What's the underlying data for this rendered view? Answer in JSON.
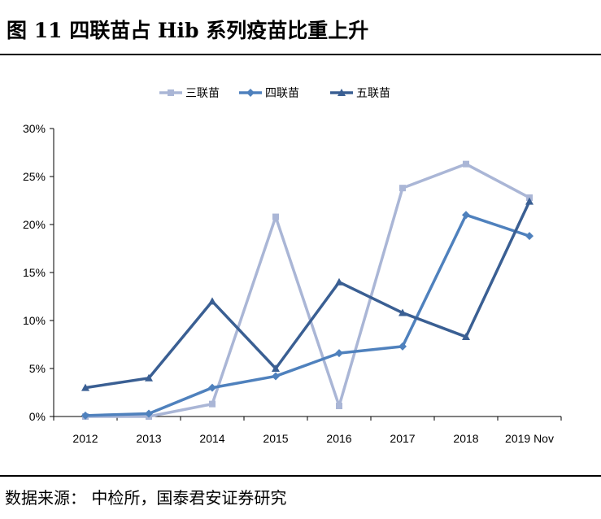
{
  "title": "图 11  四联苗占 Hib 系列疫苗比重上升",
  "source": "数据来源：  中检所，国泰君安证券研究",
  "chart_data": {
    "type": "line",
    "categories": [
      "2012",
      "2013",
      "2014",
      "2015",
      "2016",
      "2017",
      "2018",
      "2019 Nov"
    ],
    "ylim": [
      0,
      30
    ],
    "yticks": [
      "0%",
      "5%",
      "10%",
      "15%",
      "20%",
      "25%",
      "30%"
    ],
    "legend_position": "top-center",
    "grid": false,
    "series": [
      {
        "name": "三联苗",
        "color": "#aab6d6",
        "marker": "square",
        "values": [
          0.0,
          0.0,
          1.3,
          20.8,
          1.1,
          23.8,
          26.3,
          22.8
        ]
      },
      {
        "name": "四联苗",
        "color": "#4f81bd",
        "marker": "diamond",
        "values": [
          0.1,
          0.3,
          3.0,
          4.2,
          6.6,
          7.3,
          21.0,
          18.8
        ]
      },
      {
        "name": "五联苗",
        "color": "#3a5f93",
        "marker": "triangle",
        "values": [
          3.0,
          4.0,
          12.0,
          5.0,
          14.0,
          10.8,
          8.3,
          22.4
        ]
      }
    ]
  }
}
